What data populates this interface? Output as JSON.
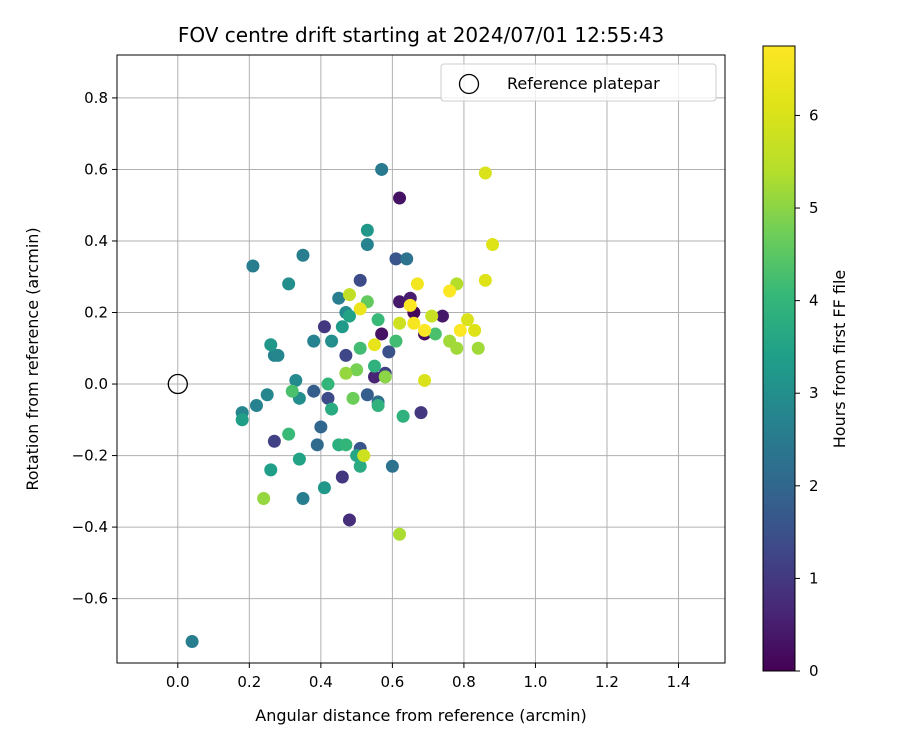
{
  "chart_data": {
    "type": "scatter",
    "title": "FOV centre drift starting at 2024/07/01 12:55:43",
    "xlabel": "Angular distance from reference (arcmin)",
    "ylabel": "Rotation from reference (arcmin)",
    "xlim": [
      -0.17,
      1.53
    ],
    "ylim": [
      -0.78,
      0.92
    ],
    "xticks": [
      0.0,
      0.2,
      0.4,
      0.6,
      0.8,
      1.0,
      1.2,
      1.4
    ],
    "xtick_labels": [
      "0.0",
      "0.2",
      "0.4",
      "0.6",
      "0.8",
      "1.0",
      "1.2",
      "1.4"
    ],
    "yticks": [
      0.8,
      0.6,
      0.4,
      0.2,
      0.0,
      -0.2,
      -0.4,
      -0.6
    ],
    "ytick_labels": [
      "0.8",
      "0.6",
      "0.4",
      "0.2",
      "0.0",
      "−0.2",
      "−0.4",
      "−0.6"
    ],
    "grid": true,
    "legend": {
      "placement": "top-right",
      "entries": [
        "Reference platepar"
      ]
    },
    "reference_point": {
      "x": 0.0,
      "y": 0.0
    },
    "colorbar": {
      "label": "Hours from first FF file",
      "colormap": "viridis",
      "range": [
        0,
        6.75
      ],
      "ticks": [
        0,
        1,
        2,
        3,
        4,
        5,
        6
      ],
      "tick_labels": [
        "0",
        "1",
        "2",
        "3",
        "4",
        "5",
        "6"
      ]
    },
    "points": [
      {
        "x": 0.62,
        "y": 0.52,
        "c": 0.3
      },
      {
        "x": 0.48,
        "y": -0.38,
        "c": 0.8
      },
      {
        "x": 0.66,
        "y": 0.2,
        "c": 0.1
      },
      {
        "x": 0.69,
        "y": 0.14,
        "c": 0.2
      },
      {
        "x": 0.74,
        "y": 0.19,
        "c": 0.4
      },
      {
        "x": 0.57,
        "y": 0.14,
        "c": 0.3
      },
      {
        "x": 0.55,
        "y": 0.02,
        "c": 0.6
      },
      {
        "x": 0.62,
        "y": 0.23,
        "c": 0.4
      },
      {
        "x": 0.65,
        "y": 0.24,
        "c": 0.5
      },
      {
        "x": 0.41,
        "y": 0.16,
        "c": 1.0
      },
      {
        "x": 0.46,
        "y": -0.26,
        "c": 1.0
      },
      {
        "x": 0.68,
        "y": -0.08,
        "c": 1.0
      },
      {
        "x": 0.58,
        "y": 0.03,
        "c": 1.2
      },
      {
        "x": 0.27,
        "y": -0.16,
        "c": 1.2
      },
      {
        "x": 0.47,
        "y": 0.08,
        "c": 1.3
      },
      {
        "x": 0.42,
        "y": -0.04,
        "c": 1.4
      },
      {
        "x": 0.51,
        "y": 0.29,
        "c": 1.4
      },
      {
        "x": 0.59,
        "y": 0.09,
        "c": 1.5
      },
      {
        "x": 0.61,
        "y": 0.35,
        "c": 1.6
      },
      {
        "x": 0.51,
        "y": -0.18,
        "c": 1.6
      },
      {
        "x": 0.38,
        "y": -0.02,
        "c": 1.8
      },
      {
        "x": 0.4,
        "y": -0.12,
        "c": 2.0
      },
      {
        "x": 0.39,
        "y": -0.17,
        "c": 2.1
      },
      {
        "x": 0.53,
        "y": -0.03,
        "c": 1.8
      },
      {
        "x": 0.56,
        "y": -0.05,
        "c": 2.2
      },
      {
        "x": 0.64,
        "y": 0.35,
        "c": 2.3
      },
      {
        "x": 0.6,
        "y": -0.23,
        "c": 2.3
      },
      {
        "x": 0.57,
        "y": 0.6,
        "c": 2.5
      },
      {
        "x": 0.35,
        "y": 0.36,
        "c": 2.6
      },
      {
        "x": 0.21,
        "y": 0.33,
        "c": 2.6
      },
      {
        "x": 0.35,
        "y": -0.32,
        "c": 2.6
      },
      {
        "x": 0.04,
        "y": -0.72,
        "c": 2.6
      },
      {
        "x": 0.53,
        "y": 0.39,
        "c": 2.7
      },
      {
        "x": 0.45,
        "y": 0.24,
        "c": 2.6
      },
      {
        "x": 0.38,
        "y": 0.12,
        "c": 2.7
      },
      {
        "x": 0.22,
        "y": -0.06,
        "c": 2.7
      },
      {
        "x": 0.18,
        "y": -0.08,
        "c": 2.8
      },
      {
        "x": 0.25,
        "y": -0.03,
        "c": 2.8
      },
      {
        "x": 0.27,
        "y": 0.08,
        "c": 2.7
      },
      {
        "x": 0.28,
        "y": 0.08,
        "c": 2.8
      },
      {
        "x": 0.33,
        "y": 0.01,
        "c": 2.9
      },
      {
        "x": 0.34,
        "y": -0.04,
        "c": 3.0
      },
      {
        "x": 0.31,
        "y": 0.28,
        "c": 3.0
      },
      {
        "x": 0.26,
        "y": 0.11,
        "c": 3.2
      },
      {
        "x": 0.41,
        "y": -0.29,
        "c": 3.2
      },
      {
        "x": 0.43,
        "y": 0.12,
        "c": 3.0
      },
      {
        "x": 0.47,
        "y": 0.2,
        "c": 2.9
      },
      {
        "x": 0.53,
        "y": 0.43,
        "c": 3.2
      },
      {
        "x": 0.46,
        "y": 0.16,
        "c": 3.3
      },
      {
        "x": 0.18,
        "y": -0.1,
        "c": 3.4
      },
      {
        "x": 0.26,
        "y": -0.24,
        "c": 3.4
      },
      {
        "x": 0.34,
        "y": -0.21,
        "c": 3.5
      },
      {
        "x": 0.48,
        "y": 0.19,
        "c": 3.5
      },
      {
        "x": 0.5,
        "y": -0.2,
        "c": 3.6
      },
      {
        "x": 0.51,
        "y": -0.23,
        "c": 3.7
      },
      {
        "x": 0.43,
        "y": -0.07,
        "c": 3.7
      },
      {
        "x": 0.45,
        "y": -0.17,
        "c": 3.8
      },
      {
        "x": 0.47,
        "y": -0.17,
        "c": 4.0
      },
      {
        "x": 0.55,
        "y": 0.05,
        "c": 3.9
      },
      {
        "x": 0.56,
        "y": -0.06,
        "c": 3.9
      },
      {
        "x": 0.63,
        "y": -0.09,
        "c": 3.9
      },
      {
        "x": 0.42,
        "y": 0.0,
        "c": 4.0
      },
      {
        "x": 0.31,
        "y": -0.14,
        "c": 4.1
      },
      {
        "x": 0.32,
        "y": -0.02,
        "c": 4.3
      },
      {
        "x": 0.51,
        "y": 0.1,
        "c": 4.2
      },
      {
        "x": 0.56,
        "y": 0.18,
        "c": 4.1
      },
      {
        "x": 0.61,
        "y": 0.12,
        "c": 4.2
      },
      {
        "x": 0.72,
        "y": 0.14,
        "c": 4.3
      },
      {
        "x": 0.53,
        "y": 0.23,
        "c": 4.6
      },
      {
        "x": 0.49,
        "y": -0.04,
        "c": 4.7
      },
      {
        "x": 0.5,
        "y": 0.04,
        "c": 4.8
      },
      {
        "x": 0.58,
        "y": 0.02,
        "c": 5.0
      },
      {
        "x": 0.47,
        "y": 0.03,
        "c": 5.1
      },
      {
        "x": 0.24,
        "y": -0.32,
        "c": 5.1
      },
      {
        "x": 0.62,
        "y": -0.42,
        "c": 5.3
      },
      {
        "x": 0.76,
        "y": 0.12,
        "c": 5.2
      },
      {
        "x": 0.78,
        "y": 0.1,
        "c": 5.2
      },
      {
        "x": 0.84,
        "y": 0.1,
        "c": 5.2
      },
      {
        "x": 0.78,
        "y": 0.28,
        "c": 5.4
      },
      {
        "x": 0.48,
        "y": 0.25,
        "c": 5.6
      },
      {
        "x": 0.52,
        "y": -0.2,
        "c": 5.8
      },
      {
        "x": 0.71,
        "y": 0.19,
        "c": 5.7
      },
      {
        "x": 0.62,
        "y": 0.17,
        "c": 5.8
      },
      {
        "x": 0.69,
        "y": 0.01,
        "c": 6.0
      },
      {
        "x": 0.81,
        "y": 0.18,
        "c": 6.0
      },
      {
        "x": 0.83,
        "y": 0.15,
        "c": 6.1
      },
      {
        "x": 0.86,
        "y": 0.59,
        "c": 6.0
      },
      {
        "x": 0.86,
        "y": 0.29,
        "c": 6.1
      },
      {
        "x": 0.88,
        "y": 0.39,
        "c": 6.1
      },
      {
        "x": 0.55,
        "y": 0.11,
        "c": 6.3
      },
      {
        "x": 0.51,
        "y": 0.21,
        "c": 6.4
      },
      {
        "x": 0.67,
        "y": 0.28,
        "c": 6.5
      },
      {
        "x": 0.66,
        "y": 0.17,
        "c": 6.6
      },
      {
        "x": 0.65,
        "y": 0.22,
        "c": 6.7
      },
      {
        "x": 0.69,
        "y": 0.15,
        "c": 6.7
      },
      {
        "x": 0.76,
        "y": 0.26,
        "c": 6.7
      },
      {
        "x": 0.79,
        "y": 0.15,
        "c": 6.7
      }
    ]
  }
}
